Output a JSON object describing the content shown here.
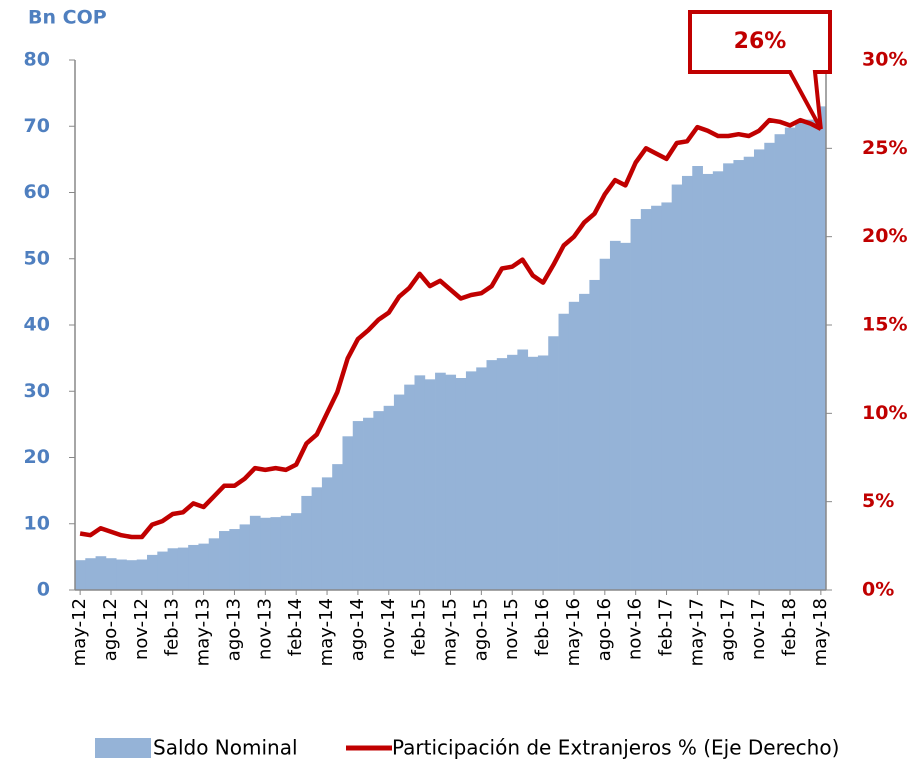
{
  "chart_data": {
    "type": "bar-line",
    "y_label": "Bn COP",
    "annotation": "26%",
    "categories": [
      "may-12",
      null,
      null,
      "ago-12",
      null,
      null,
      "nov-12",
      null,
      null,
      "feb-13",
      null,
      null,
      "may-13",
      null,
      null,
      "ago-13",
      null,
      null,
      "nov-13",
      null,
      null,
      "feb-14",
      null,
      null,
      "may-14",
      null,
      null,
      "ago-14",
      null,
      null,
      "nov-14",
      null,
      null,
      "feb-15",
      null,
      null,
      "may-15",
      null,
      null,
      "ago-15",
      null,
      null,
      "nov-15",
      null,
      null,
      "feb-16",
      null,
      null,
      "may-16",
      null,
      null,
      "ago-16",
      null,
      null,
      "nov-16",
      null,
      null,
      "feb-17",
      null,
      null,
      "may-17",
      null,
      null,
      "ago-17",
      null,
      null,
      "nov-17",
      null,
      null,
      "feb-18",
      null,
      null,
      "may-18"
    ],
    "series": [
      {
        "name": "Saldo Nominal",
        "color": "#95b3d7",
        "type": "bar",
        "values": [
          4.5,
          4.8,
          5.1,
          4.8,
          4.6,
          4.5,
          4.6,
          5.3,
          5.8,
          6.3,
          6.4,
          6.8,
          7.0,
          7.8,
          8.9,
          9.2,
          9.9,
          11.2,
          10.9,
          11.0,
          11.2,
          11.6,
          14.2,
          15.5,
          17.0,
          19.0,
          23.2,
          25.5,
          26.0,
          27.0,
          27.8,
          29.5,
          31.0,
          32.4,
          31.8,
          32.8,
          32.5,
          32.0,
          33.0,
          33.6,
          34.7,
          35.0,
          35.5,
          36.3,
          35.2,
          35.4,
          38.3,
          41.7,
          43.5,
          44.7,
          46.8,
          50.0,
          52.7,
          52.4,
          56.0,
          57.5,
          58.0,
          58.5,
          61.2,
          62.5,
          64.0,
          62.8,
          63.2,
          64.4,
          64.9,
          65.4,
          66.5,
          67.5,
          68.8,
          69.8,
          70.5,
          71.0,
          73.0
        ]
      },
      {
        "name": "Participación de Extranjeros % (Eje Derecho)",
        "color": "#c00000",
        "type": "line",
        "axis": "y2",
        "values": [
          3.2,
          3.1,
          3.5,
          3.3,
          3.1,
          3.0,
          3.0,
          3.7,
          3.9,
          4.3,
          4.4,
          4.9,
          4.7,
          5.3,
          5.9,
          5.9,
          6.3,
          6.9,
          6.8,
          6.9,
          6.8,
          7.1,
          8.3,
          8.8,
          10.0,
          11.2,
          13.1,
          14.2,
          14.7,
          15.3,
          15.7,
          16.6,
          17.1,
          17.9,
          17.2,
          17.5,
          17.0,
          16.5,
          16.7,
          16.8,
          17.2,
          18.2,
          18.3,
          18.7,
          17.8,
          17.4,
          18.4,
          19.5,
          20.0,
          20.8,
          21.3,
          22.4,
          23.2,
          22.9,
          24.2,
          25.0,
          24.7,
          24.4,
          25.3,
          25.4,
          26.2,
          26.0,
          25.7,
          25.7,
          25.8,
          25.7,
          26.0,
          26.6,
          26.5,
          26.3,
          26.6,
          26.4,
          26.1
        ]
      }
    ],
    "ylim": [
      0,
      80
    ],
    "yticks": [
      0,
      10,
      20,
      30,
      40,
      50,
      60,
      70,
      80
    ],
    "y2lim": [
      0,
      30
    ],
    "y2ticks": [
      {
        "value": 0,
        "label": "0%"
      },
      {
        "value": 5,
        "label": "5%"
      },
      {
        "value": 10,
        "label": "10%"
      },
      {
        "value": 15,
        "label": "15%"
      },
      {
        "value": 20,
        "label": "20%"
      },
      {
        "value": 25,
        "label": "25%"
      },
      {
        "value": 30,
        "label": "30%"
      }
    ],
    "legend": "bottom"
  }
}
